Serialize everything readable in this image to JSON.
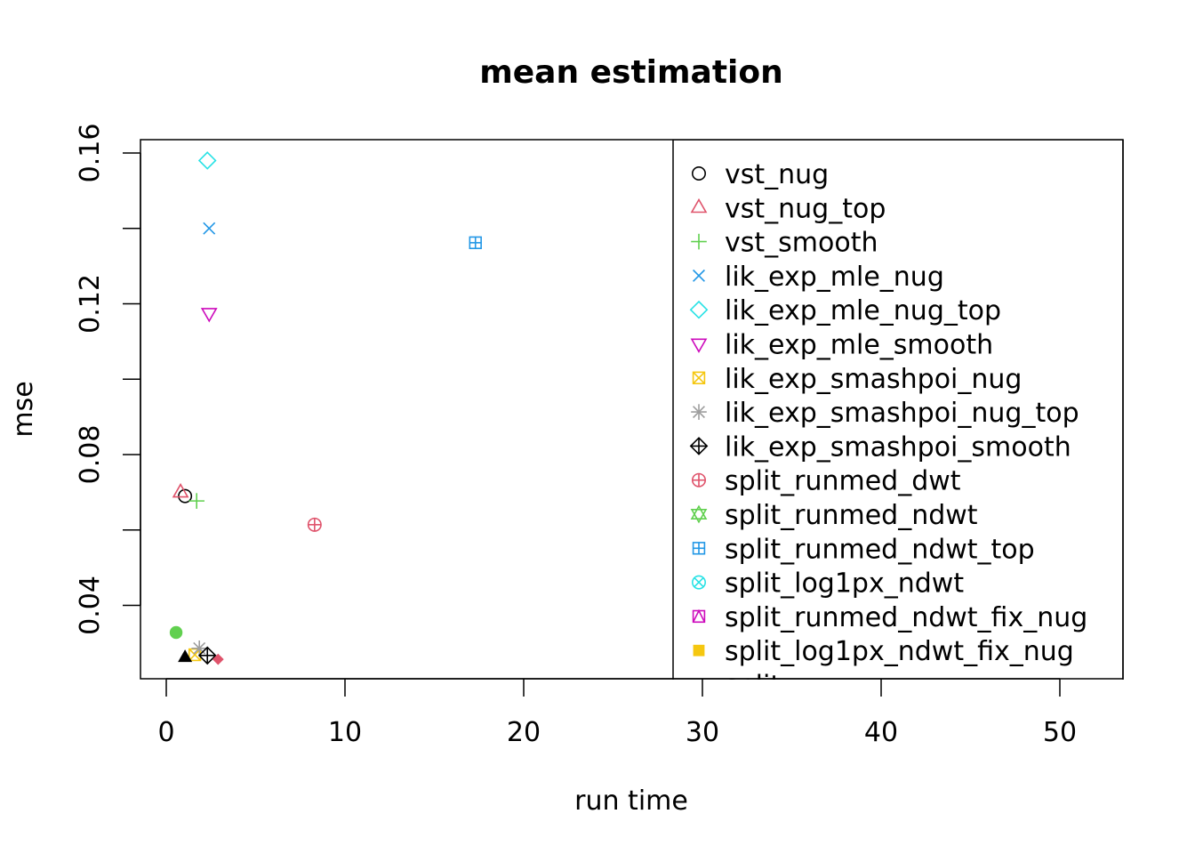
{
  "chart_data": {
    "type": "scatter",
    "title": "mean estimation",
    "xlabel": "run time",
    "ylabel": "mse",
    "xlim": [
      -1.5,
      53.5
    ],
    "ylim": [
      0.0195,
      0.1635
    ],
    "xticks": [
      0,
      10,
      20,
      30,
      40,
      50
    ],
    "yticks": [
      0.04,
      0.08,
      0.12,
      0.16
    ],
    "ytick_labels": [
      "0.04",
      "0.08",
      "0.12",
      "0.16"
    ],
    "minor_yticks": [
      0.06,
      0.1,
      0.14
    ],
    "grid": false,
    "legend_placement": "right, inside plot (clipped at bottom)",
    "legend_partial_text": "split...",
    "series": [
      {
        "name": "vst_nug",
        "pch": 1,
        "color": "#000000",
        "x": 1.05,
        "y": 0.069
      },
      {
        "name": "vst_nug_top",
        "pch": 2,
        "color": "#DF536B",
        "x": 0.8,
        "y": 0.07
      },
      {
        "name": "vst_smooth",
        "pch": 3,
        "color": "#61D04F",
        "x": 1.7,
        "y": 0.0677
      },
      {
        "name": "lik_exp_mle_nug",
        "pch": 4,
        "color": "#2297E6",
        "x": 2.4,
        "y": 0.14
      },
      {
        "name": "lik_exp_mle_nug_top",
        "pch": 5,
        "color": "#28E2E5",
        "x": 2.3,
        "y": 0.158
      },
      {
        "name": "lik_exp_mle_smooth",
        "pch": 6,
        "color": "#CD0BBC",
        "x": 2.4,
        "y": 0.1175
      },
      {
        "name": "lik_exp_smashpoi_nug",
        "pch": 7,
        "color": "#F5C710",
        "x": 1.6,
        "y": 0.0269
      },
      {
        "name": "lik_exp_smashpoi_nug_top",
        "pch": 8,
        "color": "#9E9E9E",
        "x": 1.85,
        "y": 0.0286
      },
      {
        "name": "lik_exp_smashpoi_smooth",
        "pch": 9,
        "color": "#000000",
        "x": 2.3,
        "y": 0.0267
      },
      {
        "name": "split_runmed_dwt",
        "pch": 10,
        "color": "#DF536B",
        "x": 8.3,
        "y": 0.0614
      },
      {
        "name": "split_runmed_ndwt",
        "pch": 11,
        "color": "#61D04F",
        "x": null,
        "y": null
      },
      {
        "name": "split_runmed_ndwt_top",
        "pch": 12,
        "color": "#2297E6",
        "x": 17.3,
        "y": 0.1362
      },
      {
        "name": "split_log1px_ndwt",
        "pch": 13,
        "color": "#28E2E5",
        "x": null,
        "y": null
      },
      {
        "name": "split_runmed_ndwt_fix_nug",
        "pch": 14,
        "color": "#CD0BBC",
        "x": null,
        "y": null
      },
      {
        "name": "split_log1px_ndwt_fix_nug",
        "pch": 15,
        "color": "#F5C710",
        "x": null,
        "y": null
      },
      {
        "pch": 16,
        "color": "#61D04F",
        "x": 0.55,
        "y": 0.0328
      },
      {
        "pch": 17,
        "color": "#000000",
        "x": 1.05,
        "y": 0.0262
      },
      {
        "pch": 18,
        "color": "#DF536B",
        "x": 2.9,
        "y": 0.0257
      }
    ]
  }
}
